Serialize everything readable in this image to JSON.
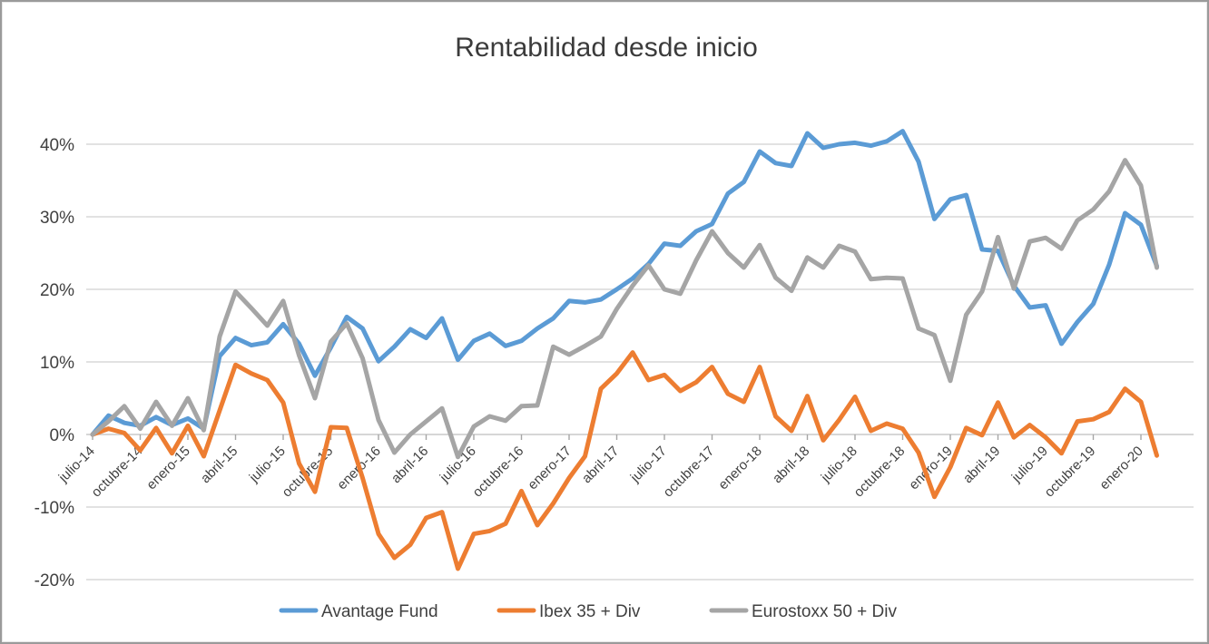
{
  "window": {
    "background": "#ffffff",
    "border_color": "#9a9a9a"
  },
  "chart_data": {
    "type": "line",
    "title": "Rentabilidad desde inicio",
    "xlabel": "",
    "ylabel": "",
    "ylim": [
      -20,
      40
    ],
    "y_tick_step": 10,
    "y_tick_labels": [
      "40%",
      "30%",
      "20%",
      "10%",
      "0%",
      "-10%",
      "-20%"
    ],
    "grid": true,
    "legend_position": "bottom",
    "n_points": 68,
    "tick_every": 3,
    "x_tick_labels": [
      "julio-14",
      "octubre-14",
      "enero-15",
      "abril-15",
      "julio-15",
      "octubre-15",
      "enero-16",
      "abril-16",
      "julio-16",
      "octubre-16",
      "enero-17",
      "abril-17",
      "julio-17",
      "octubre-17",
      "enero-18",
      "abril-18",
      "julio-18",
      "octubre-18",
      "enero-19",
      "abril-19",
      "julio-19",
      "octubre-19",
      "enero-20"
    ],
    "series": [
      {
        "name": "Avantage Fund",
        "color": "#5B9BD5",
        "values": [
          0,
          2.6,
          1.6,
          1.2,
          2.4,
          1.3,
          2.2,
          0.8,
          10.8,
          13.3,
          12.3,
          12.7,
          15.2,
          12.5,
          8.1,
          12,
          16.2,
          14.6,
          10.1,
          12.1,
          14.5,
          13.3,
          16,
          10.3,
          12.9,
          13.9,
          12.2,
          12.9,
          14.6,
          16,
          18.4,
          18.2,
          18.6,
          20,
          21.5,
          23.5,
          26.3,
          26,
          28,
          29,
          33.2,
          34.8,
          39,
          37.4,
          37,
          41.5,
          39.5,
          40,
          40.2,
          39.8,
          40.4,
          41.8,
          37.6,
          29.7,
          32.4,
          33,
          25.5,
          25.3,
          20.5,
          17.5,
          17.8,
          12.5,
          15.5,
          18,
          23.4,
          30.5,
          28.9,
          23.2
        ]
      },
      {
        "name": "Ibex 35 + Div",
        "color": "#ED7D31",
        "values": [
          0,
          0.8,
          0.2,
          -2.2,
          0.9,
          -2.6,
          1.2,
          -3,
          3.3,
          9.6,
          8.4,
          7.5,
          4.4,
          -4,
          -7.9,
          1,
          0.9,
          -6,
          -13.7,
          -17,
          -15.2,
          -11.5,
          -10.7,
          -18.5,
          -13.7,
          -13.3,
          -12.3,
          -7.8,
          -12.5,
          -9.5,
          -6,
          -3,
          6.3,
          8.4,
          11.3,
          7.5,
          8.2,
          6,
          7.2,
          9.3,
          5.6,
          4.5,
          9.3,
          2.5,
          0.5,
          5.3,
          -0.8,
          2,
          5.2,
          0.5,
          1.5,
          0.8,
          -2.5,
          -8.6,
          -4.5,
          0.9,
          -0.1,
          4.4,
          -0.4,
          1.3,
          -0.4,
          -2.6,
          1.8,
          2.1,
          3.1,
          6.3,
          4.5,
          -2.9
        ]
      },
      {
        "name": "Eurostoxx 50 + Div",
        "color": "#A5A5A5",
        "values": [
          0,
          1.8,
          3.9,
          0.8,
          4.5,
          1.2,
          5,
          0.6,
          13.5,
          19.7,
          17.4,
          15,
          18.4,
          10.9,
          5,
          12.8,
          15.3,
          10.5,
          2,
          -2.5,
          0,
          1.8,
          3.6,
          -3.1,
          1.1,
          2.5,
          1.9,
          3.9,
          4,
          12.1,
          11,
          12.2,
          13.5,
          17.3,
          20.5,
          23.3,
          20,
          19.4,
          24,
          28,
          25,
          23,
          26.1,
          21.6,
          19.8,
          24.4,
          23,
          26,
          25.2,
          21.4,
          21.6,
          21.5,
          14.6,
          13.7,
          7.4,
          16.5,
          19.7,
          27.2,
          20.1,
          26.6,
          27.1,
          25.6,
          29.5,
          31,
          33.5,
          37.8,
          34.3,
          23
        ]
      }
    ],
    "style": {
      "gridline_color": "#D9D9D9",
      "axis_line_color": "#C9C9C9",
      "tick_color": "#A6A6A6",
      "text_color": "#404040",
      "line_width": 5
    }
  }
}
